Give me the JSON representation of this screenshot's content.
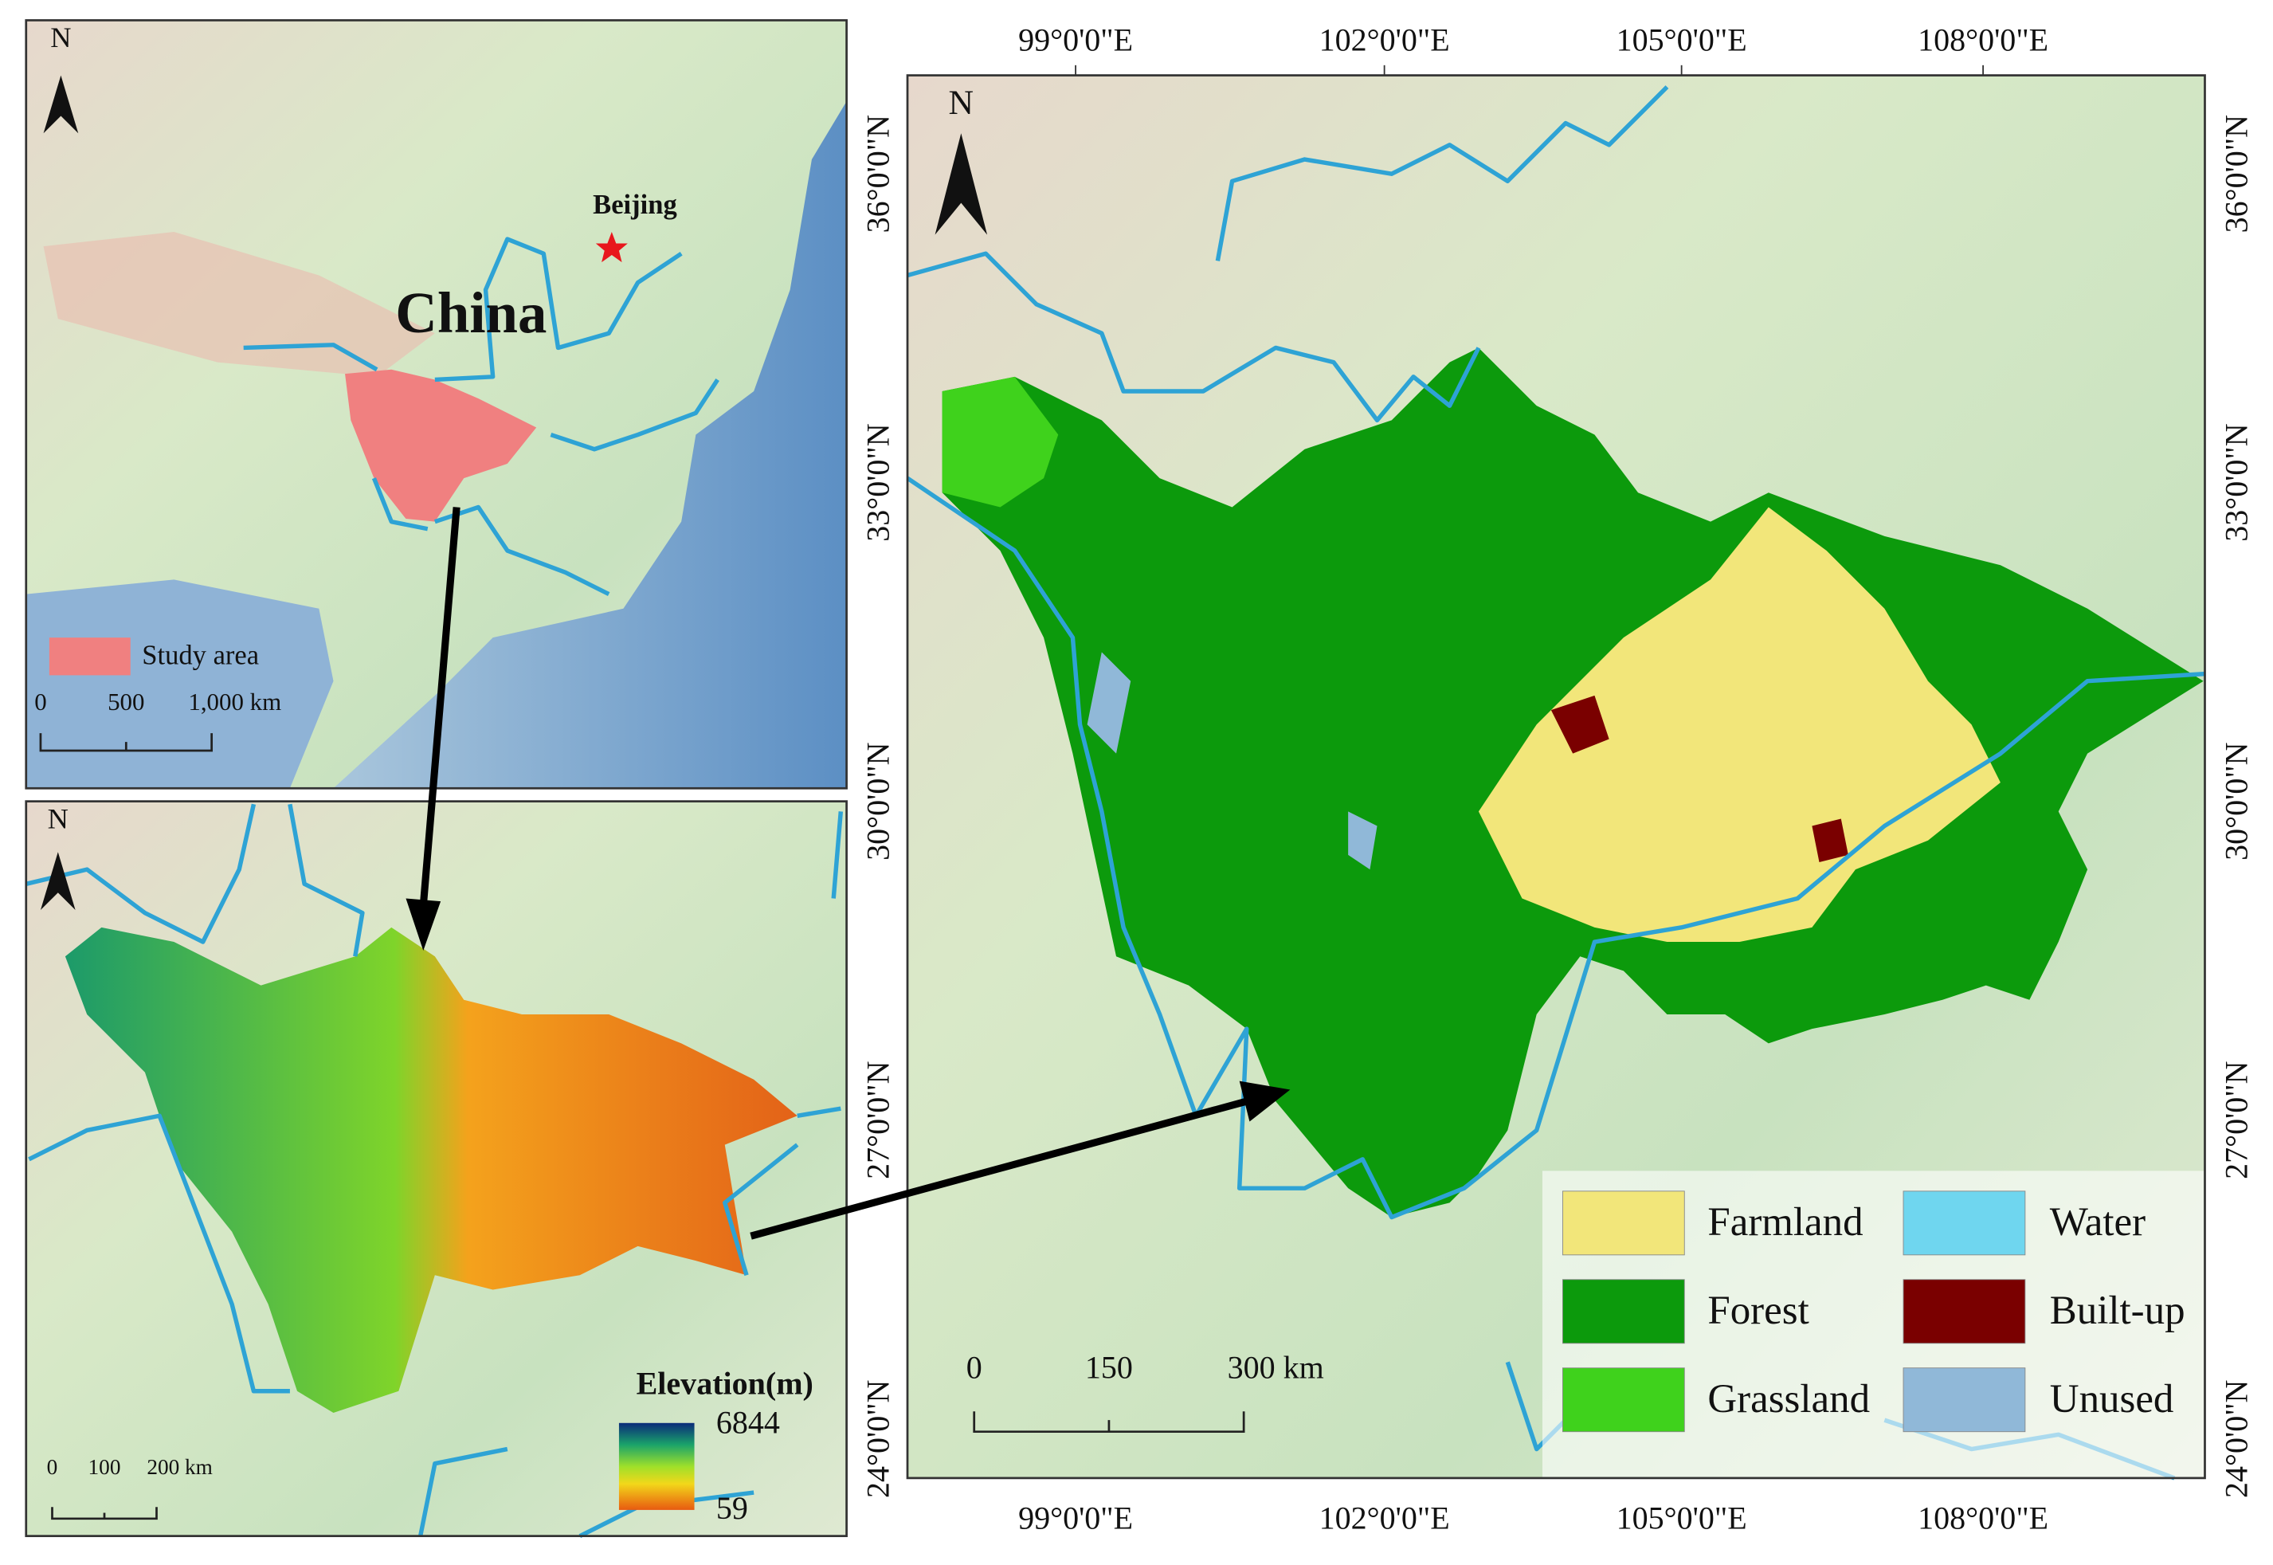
{
  "overview_map": {
    "north": "N",
    "city": "Beijing",
    "country": "China",
    "legend": "Study area",
    "scale": [
      "0",
      "500",
      "1,000 km"
    ]
  },
  "elevation_map": {
    "north": "N",
    "legend_title": "Elevation(m)",
    "legend_max": "6844",
    "legend_min": "59",
    "scale": [
      "0",
      "100",
      "200 km"
    ]
  },
  "landuse_map": {
    "north": "N",
    "longitudes": [
      "99°0'0\"E",
      "102°0'0\"E",
      "105°0'0\"E",
      "108°0'0\"E"
    ],
    "latitudes": [
      "36°0'0\"N",
      "33°0'0\"N",
      "30°0'0\"N",
      "27°0'0\"N",
      "24°0'0\"N"
    ],
    "legend": [
      {
        "label": "Farmland",
        "color": "#f2e67a"
      },
      {
        "label": "Water",
        "color": "#6fd6ef"
      },
      {
        "label": "Forest",
        "color": "#0c9a0c"
      },
      {
        "label": "Built-up",
        "color": "#7a0000"
      },
      {
        "label": "Grassland",
        "color": "#3fd21c"
      },
      {
        "label": "Unused",
        "color": "#90b8d8"
      }
    ],
    "scale": [
      "0",
      "150",
      "300 km"
    ]
  }
}
